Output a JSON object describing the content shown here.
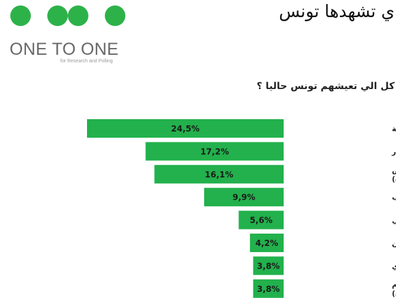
{
  "header": {
    "title": "ي تشهدها تونس",
    "question": "كل الي تعيشهم تونس حاليا ؟"
  },
  "brand": {
    "name": "ONE TO ONE",
    "tagline": "for Research and Polling",
    "dot_color": "#2db24a",
    "text_color": "#676767"
  },
  "chart_data": {
    "type": "bar",
    "orientation": "horizontal",
    "bar_color": "#22b14c",
    "title": "",
    "xlabel": "",
    "ylabel": "",
    "xlim": [
      0,
      24.5
    ],
    "categories": [
      [
        "البطالة"
      ],
      [
        "قدرة الشرائية/ غلاء الأسعار"
      ],
      [
        "يونية، عجز الميزانية/ نقص",
        "و الاستثمارات)"
      ],
      [
        "الإرهاب"
      ],
      [
        "عدم الإستقرار السياسي"
      ],
      [
        "الأمن"
      ],
      [
        "الفساد المالي و الإداري"
      ],
      [
        "/ فساد السياسيين و عدم",
        "ر الحكومة)"
      ]
    ],
    "values": [
      24.5,
      17.2,
      16.1,
      9.9,
      5.6,
      4.2,
      3.8,
      3.8
    ],
    "value_labels": [
      "24,5%",
      "17,2%",
      "16,1%",
      "9,9%",
      "5,6%",
      "4,2%",
      "3,8%",
      "3,8%"
    ]
  }
}
